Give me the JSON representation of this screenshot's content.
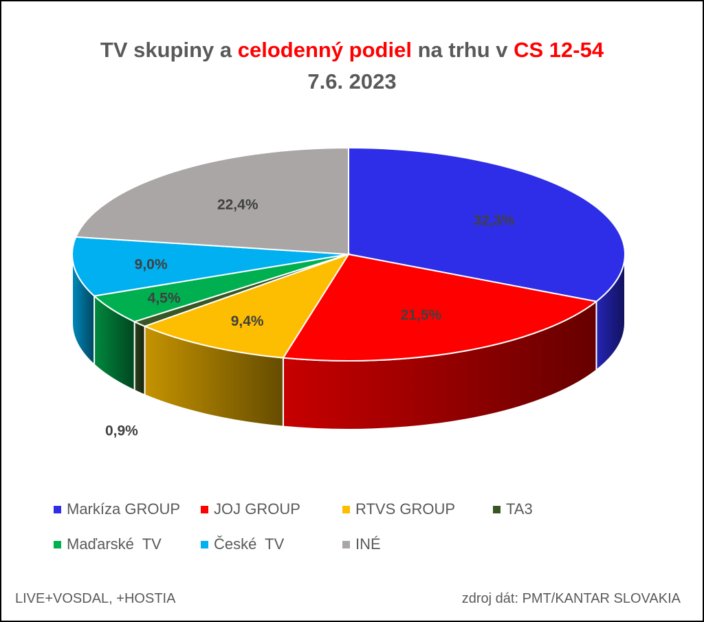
{
  "title": {
    "part1": "TV skupiny a ",
    "part2": "celodenný podiel",
    "part3": " na trhu v ",
    "part4": "CS 12-54",
    "line2": "7.6. 2023"
  },
  "chart_data": {
    "type": "pie",
    "categories": [
      "Markíza GROUP",
      "JOJ GROUP",
      "RTVS GROUP",
      "TA3",
      "Maďarské  TV",
      "České  TV",
      "INÉ"
    ],
    "values": [
      32.3,
      21.5,
      9.4,
      0.9,
      4.5,
      9.0,
      22.4
    ],
    "value_labels": [
      "32,3%",
      "21,5%",
      "9,4%",
      "0,9%",
      "4,5%",
      "9,0%",
      "22,4%"
    ],
    "colors": [
      "#2e2ee8",
      "#ff0000",
      "#fdbd00",
      "#375623",
      "#00b050",
      "#00b0f0",
      "#aaa6a5"
    ],
    "legend_position": "bottom",
    "style": "3d"
  },
  "footer": {
    "left": "LIVE+VOSDAL,  +HOSTIA",
    "right": "zdroj dát: PMT/KANTAR SLOVAKIA"
  }
}
